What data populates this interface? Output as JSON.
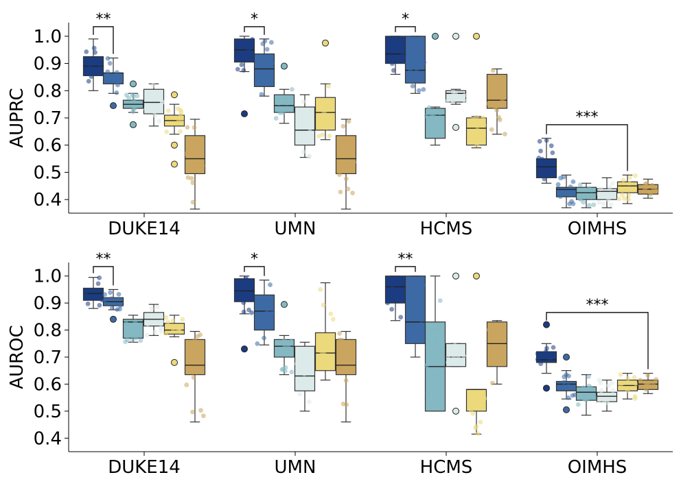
{
  "palette": [
    "#1b3c80",
    "#3d6aa4",
    "#84b8c2",
    "#dcebea",
    "#ecd97c",
    "#c9a55f"
  ],
  "chart_data": [
    {
      "type": "box",
      "ylabel": "AUPRC",
      "ylim": [
        0.35,
        1.05
      ],
      "yticks": [
        0.4,
        0.5,
        0.6,
        0.7,
        0.8,
        0.9,
        1.0
      ],
      "categories": [
        "DUKE14",
        "UMN",
        "HCMS",
        "OIMHS"
      ],
      "grid": false,
      "boxes": [
        [
          {
            "q1": 0.855,
            "median": 0.89,
            "q3": 0.925,
            "wlo": 0.8,
            "whi": 0.99,
            "fliers": []
          },
          {
            "q1": 0.825,
            "median": 0.865,
            "q3": 0.865,
            "wlo": 0.79,
            "whi": 0.92,
            "fliers": [
              0.745
            ]
          },
          {
            "q1": 0.735,
            "median": 0.75,
            "q3": 0.765,
            "wlo": 0.72,
            "whi": 0.79,
            "fliers": [
              0.825,
              0.675
            ]
          },
          {
            "q1": 0.715,
            "median": 0.757,
            "q3": 0.805,
            "wlo": 0.67,
            "whi": 0.825,
            "fliers": []
          },
          {
            "q1": 0.67,
            "median": 0.69,
            "q3": 0.71,
            "wlo": 0.64,
            "whi": 0.75,
            "fliers": [
              0.785,
              0.6,
              0.53
            ]
          },
          {
            "q1": 0.495,
            "median": 0.55,
            "q3": 0.635,
            "wlo": 0.365,
            "whi": 0.695,
            "fliers": []
          }
        ],
        [
          {
            "q1": 0.905,
            "median": 0.95,
            "q3": 0.99,
            "wlo": 0.87,
            "whi": 1.0,
            "fliers": [
              0.715
            ]
          },
          {
            "q1": 0.815,
            "median": 0.88,
            "q3": 0.935,
            "wlo": 0.78,
            "whi": 0.99,
            "fliers": []
          },
          {
            "q1": 0.72,
            "median": 0.745,
            "q3": 0.785,
            "wlo": 0.68,
            "whi": 0.805,
            "fliers": [
              0.89
            ]
          },
          {
            "q1": 0.6,
            "median": 0.655,
            "q3": 0.74,
            "wlo": 0.555,
            "whi": 0.785,
            "fliers": []
          },
          {
            "q1": 0.655,
            "median": 0.72,
            "q3": 0.775,
            "wlo": 0.62,
            "whi": 0.825,
            "fliers": [
              0.975
            ]
          },
          {
            "q1": 0.495,
            "median": 0.55,
            "q3": 0.635,
            "wlo": 0.365,
            "whi": 0.695,
            "fliers": []
          }
        ],
        [
          {
            "q1": 0.9,
            "median": 0.935,
            "q3": 1.0,
            "wlo": 0.86,
            "whi": 1.0,
            "fliers": []
          },
          {
            "q1": 0.828,
            "median": 0.875,
            "q3": 1.0,
            "wlo": 0.79,
            "whi": 1.0,
            "fliers": []
          },
          {
            "q1": 0.625,
            "median": 0.71,
            "q3": 0.735,
            "wlo": 0.6,
            "whi": 0.74,
            "fliers": [
              1.0
            ]
          },
          {
            "q1": 0.758,
            "median": 0.79,
            "q3": 0.8,
            "wlo": 0.75,
            "whi": 0.805,
            "fliers": [
              1.0,
              0.665
            ]
          },
          {
            "q1": 0.6,
            "median": 0.662,
            "q3": 0.7,
            "wlo": 0.59,
            "whi": 0.705,
            "fliers": [
              1.0
            ]
          },
          {
            "q1": 0.735,
            "median": 0.765,
            "q3": 0.86,
            "wlo": 0.64,
            "whi": 0.88,
            "fliers": []
          }
        ],
        [
          {
            "q1": 0.48,
            "median": 0.52,
            "q3": 0.55,
            "wlo": 0.46,
            "whi": 0.625,
            "fliers": []
          },
          {
            "q1": 0.41,
            "median": 0.437,
            "q3": 0.445,
            "wlo": 0.37,
            "whi": 0.49,
            "fliers": []
          },
          {
            "q1": 0.4,
            "median": 0.425,
            "q3": 0.445,
            "wlo": 0.37,
            "whi": 0.46,
            "fliers": []
          },
          {
            "q1": 0.4,
            "median": 0.43,
            "q3": 0.44,
            "wlo": 0.37,
            "whi": 0.48,
            "fliers": []
          },
          {
            "q1": 0.425,
            "median": 0.45,
            "q3": 0.465,
            "wlo": 0.385,
            "whi": 0.49,
            "fliers": []
          },
          {
            "q1": 0.42,
            "median": 0.438,
            "q3": 0.455,
            "wlo": 0.405,
            "whi": 0.475,
            "fliers": []
          }
        ]
      ],
      "significance": [
        {
          "group": 0,
          "from": 0,
          "to": 1,
          "label": "**",
          "y": 1.035
        },
        {
          "group": 1,
          "from": 0,
          "to": 1,
          "label": "*",
          "y": 1.035
        },
        {
          "group": 2,
          "from": 0,
          "to": 1,
          "label": "*",
          "y": 1.035
        },
        {
          "group": 3,
          "from": 0,
          "to": 4,
          "label": "***",
          "y": 0.675
        }
      ]
    },
    {
      "type": "box",
      "ylabel": "AUROC",
      "ylim": [
        0.35,
        1.05
      ],
      "yticks": [
        0.4,
        0.5,
        0.6,
        0.7,
        0.8,
        0.9,
        1.0
      ],
      "categories": [
        "DUKE14",
        "UMN",
        "HCMS",
        "OIMHS"
      ],
      "grid": false,
      "boxes": [
        [
          {
            "q1": 0.91,
            "median": 0.935,
            "q3": 0.955,
            "wlo": 0.88,
            "whi": 0.995,
            "fliers": []
          },
          {
            "q1": 0.89,
            "median": 0.905,
            "q3": 0.92,
            "wlo": 0.875,
            "whi": 0.95,
            "fliers": [
              0.84
            ]
          },
          {
            "q1": 0.77,
            "median": 0.83,
            "q3": 0.84,
            "wlo": 0.755,
            "whi": 0.855,
            "fliers": []
          },
          {
            "q1": 0.815,
            "median": 0.84,
            "q3": 0.865,
            "wlo": 0.78,
            "whi": 0.895,
            "fliers": []
          },
          {
            "q1": 0.785,
            "median": 0.8,
            "q3": 0.825,
            "wlo": 0.775,
            "whi": 0.855,
            "fliers": [
              0.68
            ]
          },
          {
            "q1": 0.635,
            "median": 0.67,
            "q3": 0.765,
            "wlo": 0.46,
            "whi": 0.795,
            "fliers": []
          }
        ],
        [
          {
            "q1": 0.905,
            "median": 0.945,
            "q3": 0.99,
            "wlo": 0.86,
            "whi": 1.0,
            "fliers": [
              0.73
            ]
          },
          {
            "q1": 0.8,
            "median": 0.87,
            "q3": 0.93,
            "wlo": 0.745,
            "whi": 0.985,
            "fliers": []
          },
          {
            "q1": 0.7,
            "median": 0.74,
            "q3": 0.765,
            "wlo": 0.635,
            "whi": 0.78,
            "fliers": [
              0.895
            ]
          },
          {
            "q1": 0.575,
            "median": 0.63,
            "q3": 0.74,
            "wlo": 0.5,
            "whi": 0.755,
            "fliers": []
          },
          {
            "q1": 0.65,
            "median": 0.715,
            "q3": 0.79,
            "wlo": 0.615,
            "whi": 0.975,
            "fliers": []
          },
          {
            "q1": 0.635,
            "median": 0.67,
            "q3": 0.765,
            "wlo": 0.46,
            "whi": 0.795,
            "fliers": []
          }
        ],
        [
          {
            "q1": 0.9,
            "median": 0.96,
            "q3": 1.0,
            "wlo": 0.835,
            "whi": 1.0,
            "fliers": []
          },
          {
            "q1": 0.75,
            "median": 0.83,
            "q3": 1.0,
            "wlo": 0.7,
            "whi": 1.0,
            "fliers": []
          },
          {
            "q1": 0.5,
            "median": 0.665,
            "q3": 0.83,
            "wlo": 0.5,
            "whi": 1.0,
            "fliers": []
          },
          {
            "q1": 0.665,
            "median": 0.7,
            "q3": 0.75,
            "wlo": 0.665,
            "whi": 0.75,
            "fliers": [
              1.0,
              0.5
            ]
          },
          {
            "q1": 0.5,
            "median": 0.58,
            "q3": 0.58,
            "wlo": 0.415,
            "whi": 0.58,
            "fliers": [
              1.0
            ]
          },
          {
            "q1": 0.665,
            "median": 0.75,
            "q3": 0.83,
            "wlo": 0.6,
            "whi": 0.835,
            "fliers": []
          }
        ],
        [
          {
            "q1": 0.68,
            "median": 0.69,
            "q3": 0.72,
            "wlo": 0.64,
            "whi": 0.75,
            "fliers": [
              0.82,
              0.585
            ]
          },
          {
            "q1": 0.575,
            "median": 0.6,
            "q3": 0.61,
            "wlo": 0.545,
            "whi": 0.65,
            "fliers": [
              0.7,
              0.505
            ]
          },
          {
            "q1": 0.54,
            "median": 0.57,
            "q3": 0.59,
            "wlo": 0.485,
            "whi": 0.635,
            "fliers": []
          },
          {
            "q1": 0.535,
            "median": 0.555,
            "q3": 0.57,
            "wlo": 0.5,
            "whi": 0.615,
            "fliers": []
          },
          {
            "q1": 0.575,
            "median": 0.595,
            "q3": 0.615,
            "wlo": 0.545,
            "whi": 0.64,
            "fliers": []
          },
          {
            "q1": 0.58,
            "median": 0.6,
            "q3": 0.615,
            "wlo": 0.565,
            "whi": 0.64,
            "fliers": []
          }
        ]
      ],
      "significance": [
        {
          "group": 0,
          "from": 0,
          "to": 1,
          "label": "**",
          "y": 1.035
        },
        {
          "group": 1,
          "from": 0,
          "to": 1,
          "label": "*",
          "y": 1.035
        },
        {
          "group": 2,
          "from": 0,
          "to": 1,
          "label": "**",
          "y": 1.035
        },
        {
          "group": 3,
          "from": 0,
          "to": 5,
          "label": "***",
          "y": 0.865
        }
      ]
    }
  ]
}
